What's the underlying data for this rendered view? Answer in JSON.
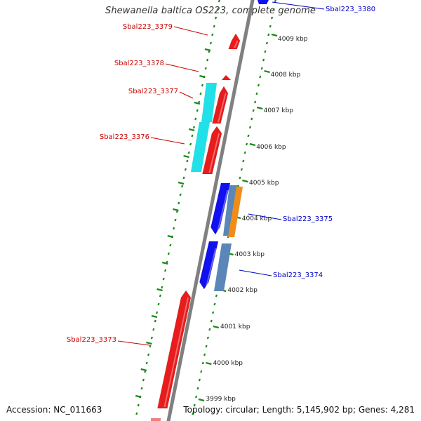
{
  "title": "Shewanella baltica OS223, complete genome",
  "footer": {
    "accession": "Accession: NC_011663",
    "summary": "Topology: circular; Length: 5,145,902 bp; Genes: 4,281"
  },
  "colors": {
    "backbone": "#808080",
    "ticks": "#1a8a1a",
    "reverse_label": "#cc0000",
    "forward_label": "#0000cc"
  },
  "kbp_ticks": [
    "4009 kbp",
    "4008 kbp",
    "4007 kbp",
    "4006 kbp",
    "4005 kbp",
    "4004 kbp",
    "4003 kbp",
    "4002 kbp",
    "4001 kbp",
    "4000 kbp",
    "3999 kbp"
  ],
  "gene_labels": [
    {
      "text": "Sbal223_3380",
      "strand": "forward"
    },
    {
      "text": "Sbal223_3379",
      "strand": "reverse"
    },
    {
      "text": "Sbal223_3378",
      "strand": "reverse"
    },
    {
      "text": "Sbal223_3377",
      "strand": "reverse"
    },
    {
      "text": "Sbal223_3376",
      "strand": "reverse"
    },
    {
      "text": "Sbal223_3375",
      "strand": "forward"
    },
    {
      "text": "Sbal223_3374",
      "strand": "forward"
    },
    {
      "text": "Sbal223_3373",
      "strand": "reverse"
    }
  ]
}
